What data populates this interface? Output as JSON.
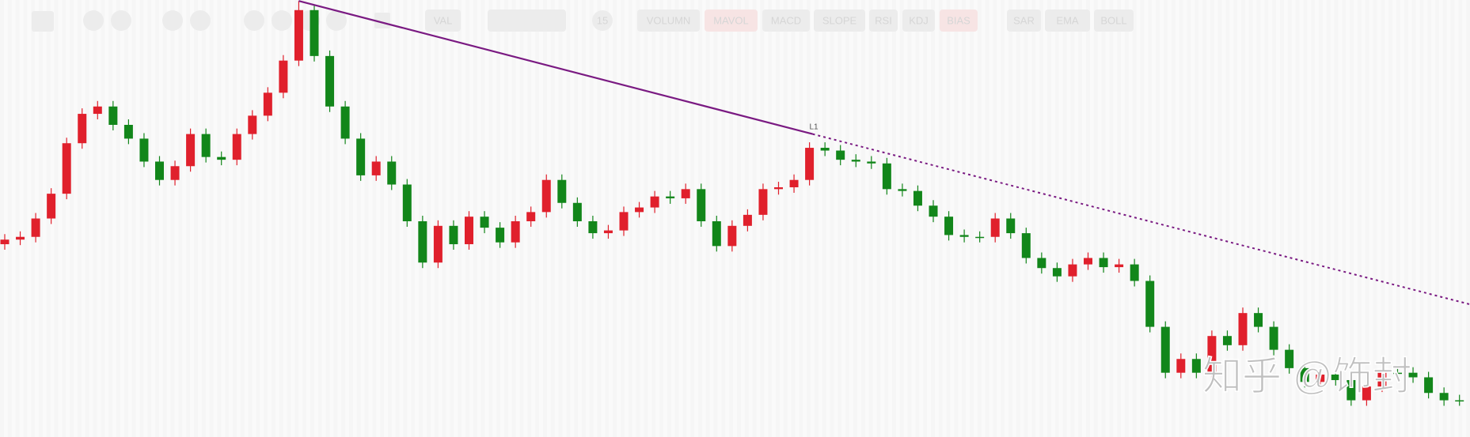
{
  "chart_data": {
    "type": "candlestick",
    "open": [
      20.0,
      20.5,
      20.8,
      22.8,
      25.5,
      31.0,
      34.2,
      35.0,
      33.0,
      31.5,
      29.0,
      27.0,
      28.5,
      32.0,
      29.5,
      29.2,
      32.0,
      34.0,
      36.5,
      40.0,
      45.5,
      40.5,
      35.0,
      31.5,
      27.5,
      29.0,
      26.5,
      22.5,
      18.0,
      22.0,
      20.0,
      23.0,
      21.8,
      20.2,
      22.5,
      23.5,
      27.0,
      24.5,
      22.5,
      21.2,
      21.5,
      23.5,
      24.0,
      25.2,
      25.0,
      26.0,
      22.5,
      19.8,
      22.0,
      23.2,
      26.0,
      26.2,
      27.0,
      30.5,
      30.2,
      29.2,
      29.0,
      28.8,
      26.0,
      25.8,
      24.2,
      23.0,
      21.0,
      20.8,
      20.8,
      22.8,
      21.2,
      18.5,
      17.4,
      16.5,
      17.8,
      18.5,
      17.5,
      17.8,
      16.0,
      11.0,
      6.0,
      7.5,
      6.0,
      10.0,
      9.0,
      12.5,
      11.0,
      8.5,
      6.5,
      5.0,
      5.8,
      5.2,
      3.0,
      4.5,
      6.0,
      6.0,
      5.5,
      3.8,
      3.0
    ],
    "high": [
      21.1,
      21.4,
      23.4,
      26.1,
      31.6,
      34.8,
      35.6,
      35.6,
      33.6,
      32.1,
      29.6,
      29.1,
      32.6,
      32.6,
      30.1,
      32.6,
      34.6,
      37.1,
      40.6,
      46.5,
      46.1,
      41.1,
      35.6,
      32.1,
      29.6,
      29.6,
      27.1,
      23.1,
      22.6,
      22.6,
      23.6,
      23.6,
      22.4,
      23.1,
      24.1,
      27.6,
      27.6,
      25.1,
      23.1,
      22.1,
      24.1,
      24.6,
      25.8,
      25.8,
      26.6,
      26.6,
      23.1,
      22.6,
      23.8,
      26.6,
      26.8,
      27.6,
      31.1,
      31.1,
      30.8,
      29.8,
      29.6,
      29.4,
      26.6,
      26.4,
      24.8,
      23.6,
      21.6,
      21.4,
      23.4,
      23.4,
      21.8,
      19.1,
      18.0,
      18.4,
      19.1,
      19.1,
      18.4,
      18.4,
      16.6,
      11.6,
      8.1,
      8.1,
      10.6,
      10.6,
      13.1,
      13.1,
      11.6,
      9.1,
      7.1,
      6.4,
      6.4,
      5.8,
      5.1,
      6.6,
      6.6,
      6.6,
      6.1,
      4.4,
      3.6
    ],
    "low": [
      19.4,
      19.9,
      20.2,
      22.2,
      24.9,
      30.4,
      33.6,
      32.4,
      30.9,
      28.4,
      26.4,
      26.4,
      27.9,
      28.9,
      28.6,
      28.6,
      31.4,
      33.4,
      35.9,
      39.4,
      39.9,
      34.4,
      30.9,
      26.9,
      26.9,
      25.9,
      21.9,
      17.4,
      17.4,
      19.4,
      19.4,
      21.2,
      19.6,
      19.6,
      21.9,
      22.9,
      23.9,
      21.9,
      20.6,
      20.6,
      20.9,
      22.9,
      23.4,
      24.4,
      24.4,
      21.9,
      19.2,
      19.2,
      21.4,
      22.6,
      25.4,
      25.6,
      26.4,
      29.6,
      28.6,
      28.4,
      28.2,
      25.4,
      25.2,
      23.6,
      22.4,
      20.4,
      20.2,
      20.2,
      20.2,
      20.6,
      17.9,
      16.8,
      15.9,
      15.9,
      17.2,
      16.9,
      16.9,
      15.4,
      10.4,
      5.4,
      5.4,
      5.4,
      5.4,
      8.4,
      8.4,
      10.4,
      7.9,
      5.9,
      4.4,
      4.4,
      4.6,
      2.4,
      2.4,
      3.9,
      5.4,
      4.9,
      3.2,
      2.4,
      2.4
    ],
    "close": [
      20.5,
      20.8,
      22.8,
      25.5,
      31.0,
      34.2,
      35.0,
      33.0,
      31.5,
      29.0,
      27.0,
      28.5,
      32.0,
      29.5,
      29.2,
      32.0,
      34.0,
      36.5,
      40.0,
      45.5,
      40.5,
      35.0,
      31.5,
      27.5,
      29.0,
      26.5,
      22.5,
      18.0,
      22.0,
      20.0,
      23.0,
      21.8,
      20.2,
      22.5,
      23.5,
      27.0,
      24.5,
      22.5,
      21.2,
      21.5,
      23.5,
      24.0,
      25.2,
      25.0,
      26.0,
      22.5,
      19.8,
      22.0,
      23.2,
      26.0,
      26.2,
      27.0,
      30.5,
      30.2,
      29.2,
      29.0,
      28.8,
      26.0,
      25.8,
      24.2,
      23.0,
      21.0,
      20.8,
      20.8,
      22.8,
      21.2,
      18.5,
      17.4,
      16.5,
      17.8,
      18.5,
      17.5,
      17.8,
      16.0,
      11.0,
      6.0,
      7.5,
      6.0,
      10.0,
      9.0,
      12.5,
      11.0,
      8.5,
      6.5,
      5.0,
      5.8,
      5.2,
      3.0,
      4.5,
      6.0,
      6.0,
      5.5,
      3.8,
      3.0,
      3.0
    ],
    "up_color": "#e0202c",
    "down_color": "#12861a",
    "ylim": [
      -1,
      46.6
    ],
    "trendline": {
      "label": "L1",
      "x": [
        19,
        52.2
      ],
      "y": [
        46.5,
        32.0
      ],
      "color": "#7a1a82"
    }
  },
  "toolbar": {
    "buttons": [
      "VAL",
      "15",
      "VOLUMN",
      "MAVOL",
      "MACD",
      "SLOPE",
      "RSI",
      "KDJ",
      "BIAS",
      "SAR",
      "EMA",
      "BOLL"
    ]
  },
  "watermark": "知乎 @饰封"
}
